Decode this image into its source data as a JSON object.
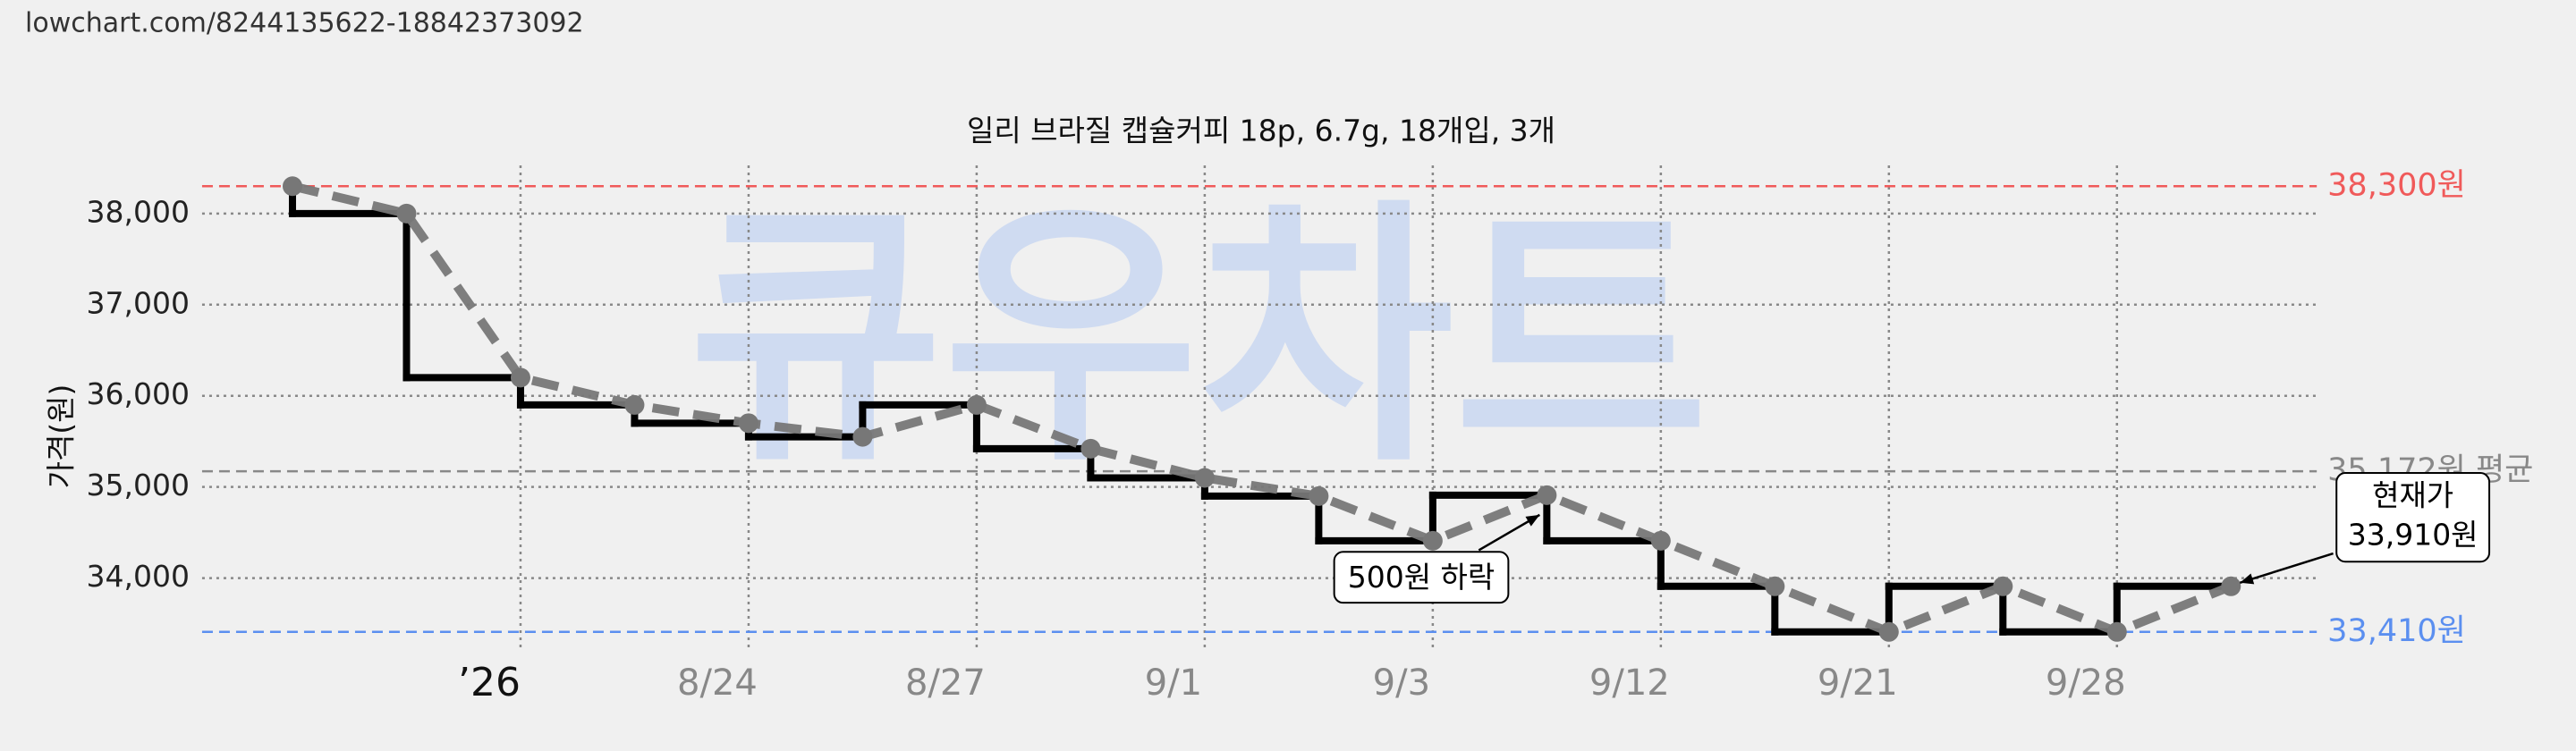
{
  "page_url": "lowchart.com/8244135622-18842373092",
  "chart_data": {
    "type": "step-line",
    "title": "일리 브라질 캡슐커피 18p, 6.7g, 18개입, 3개",
    "y_label": "가격(원)",
    "watermark": "큐우차트",
    "categories": [
      null,
      null,
      "’26",
      null,
      "8/24",
      null,
      "8/27",
      null,
      "9/1",
      null,
      "9/3",
      null,
      "9/12",
      null,
      "9/21",
      null,
      "9/28",
      null
    ],
    "series": [
      {
        "name": "가격",
        "color": "#000000",
        "trend_color": "#777777",
        "values": [
          38300,
          38000,
          36200,
          35900,
          35700,
          35550,
          35900,
          35420,
          35100,
          34900,
          34410,
          34910,
          34410,
          33910,
          33410,
          33910,
          33410,
          33910
        ]
      }
    ],
    "ylim": [
      33200,
      38550
    ],
    "yticks": [
      {
        "value": 34000,
        "label": "34,000"
      },
      {
        "value": 35000,
        "label": "35,000"
      },
      {
        "value": 36000,
        "label": "36,000"
      },
      {
        "value": 37000,
        "label": "37,000"
      },
      {
        "value": 38000,
        "label": "38,000"
      }
    ],
    "grid": true,
    "reference_lines": [
      {
        "value": 38300,
        "label": "38,300원",
        "color": "#f05a5a"
      },
      {
        "value": 35172,
        "label": "35,172원 평균",
        "color": "#888888"
      },
      {
        "value": 33410,
        "label": "33,410원",
        "color": "#5b8ff0"
      }
    ],
    "annotations": [
      {
        "text": "500원 하락",
        "index": 11
      },
      {
        "text": [
          "현재가",
          "33,910원"
        ],
        "index": 17
      }
    ]
  }
}
